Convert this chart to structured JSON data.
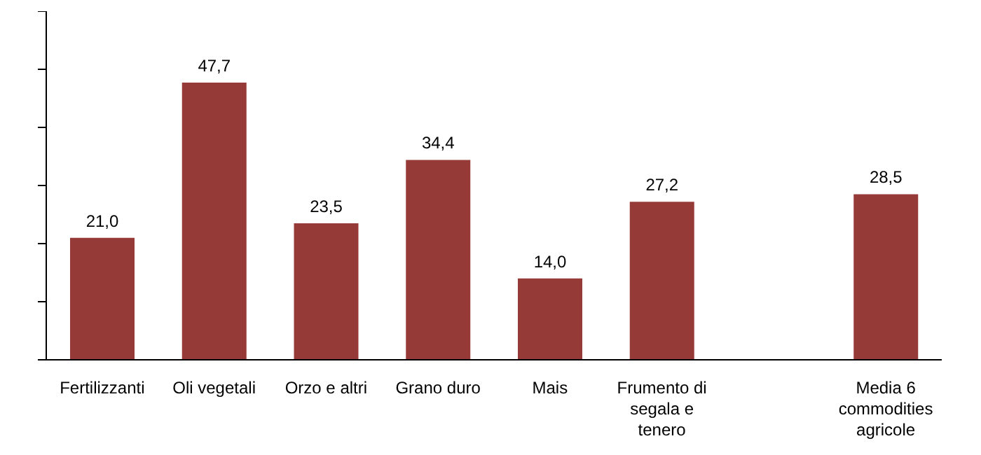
{
  "chart_data": {
    "type": "bar",
    "categories": [
      "Fertilizzanti",
      "Oli vegetali",
      "Orzo e altri",
      "Grano duro",
      "Mais",
      "Frumento di segala e tenero",
      null,
      "Media 6 commodities agricole"
    ],
    "values": [
      21.0,
      47.7,
      23.5,
      34.4,
      14.0,
      27.2,
      null,
      28.5
    ],
    "value_labels": [
      "21,0",
      "47,7",
      "23,5",
      "34,4",
      "14,0",
      "27,2",
      null,
      "28,5"
    ],
    "color": "#963a38",
    "ylim": [
      0,
      60
    ],
    "yticks": [
      {
        "value": 0,
        "label": null
      },
      {
        "value": 10,
        "label": null
      },
      {
        "value": 20,
        "label": null
      },
      {
        "value": 30,
        "label": null
      },
      {
        "value": 40,
        "label": null
      },
      {
        "value": 50,
        "label": null
      },
      {
        "value": 60,
        "label": null
      }
    ],
    "tick_labels": "x",
    "grid": false,
    "legend": false
  }
}
